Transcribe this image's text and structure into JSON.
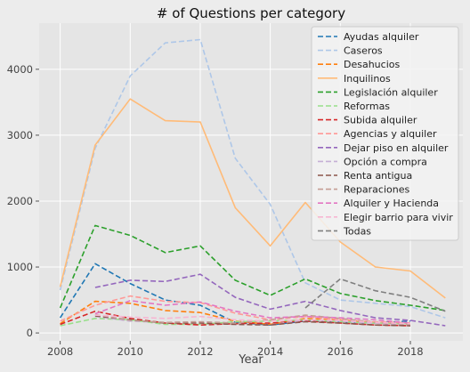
{
  "chart_data": {
    "type": "line",
    "title": "# of Questions per category",
    "xlabel": "Year",
    "ylabel": "",
    "xlim": [
      2007.4,
      2019.5
    ],
    "ylim": [
      -120,
      4700
    ],
    "xticks": [
      2008,
      2010,
      2012,
      2014,
      2016,
      2018
    ],
    "yticks": [
      0,
      1000,
      2000,
      3000,
      4000
    ],
    "x": [
      2008,
      2009,
      2010,
      2011,
      2012,
      2013,
      2014,
      2015,
      2016,
      2017,
      2018,
      2019
    ],
    "grid": true,
    "legend_position": "top-right",
    "series": [
      {
        "name": "Ayudas alquiler",
        "color": "#1f77b4",
        "dash": "dashed",
        "values": [
          230,
          1050,
          750,
          500,
          420,
          160,
          120,
          180,
          170,
          150,
          180,
          null
        ]
      },
      {
        "name": "Caseros",
        "color": "#aec7e8",
        "dash": "dashed",
        "values": [
          650,
          2800,
          3900,
          4400,
          4450,
          2650,
          1950,
          760,
          500,
          450,
          400,
          230
        ]
      },
      {
        "name": "Desahucios",
        "color": "#ff7f0e",
        "dash": "dashed",
        "values": [
          140,
          480,
          450,
          340,
          310,
          180,
          130,
          220,
          200,
          160,
          150,
          null
        ]
      },
      {
        "name": "Inquilinos",
        "color": "#ffbb78",
        "dash": "solid",
        "values": [
          700,
          2850,
          3550,
          3220,
          3200,
          1900,
          1320,
          1980,
          1380,
          1000,
          940,
          530
        ]
      },
      {
        "name": "Legislación alquiler",
        "color": "#2ca02c",
        "dash": "dashed",
        "values": [
          380,
          1630,
          1480,
          1220,
          1320,
          800,
          570,
          820,
          600,
          490,
          420,
          340
        ]
      },
      {
        "name": "Reformas",
        "color": "#98df8a",
        "dash": "dashed",
        "values": [
          110,
          220,
          200,
          130,
          130,
          170,
          180,
          200,
          170,
          150,
          140,
          null
        ]
      },
      {
        "name": "Subida alquiler",
        "color": "#d62728",
        "dash": "dashed",
        "values": [
          130,
          330,
          220,
          150,
          120,
          140,
          150,
          180,
          150,
          120,
          110,
          null
        ]
      },
      {
        "name": "Agencias y alquiler",
        "color": "#ff9896",
        "dash": "dashed",
        "values": [
          180,
          420,
          560,
          480,
          460,
          300,
          200,
          250,
          200,
          170,
          150,
          null
        ]
      },
      {
        "name": "Dejar piso en alquiler",
        "color": "#9467bd",
        "dash": "dashed",
        "values": [
          null,
          690,
          800,
          780,
          890,
          540,
          360,
          480,
          340,
          230,
          190,
          110
        ]
      },
      {
        "name": "Opción a compra",
        "color": "#c5b0d5",
        "dash": "dashed",
        "values": [
          null,
          250,
          180,
          160,
          150,
          130,
          120,
          200,
          180,
          150,
          120,
          null
        ]
      },
      {
        "name": "Renta antigua",
        "color": "#8c564b",
        "dash": "dashed",
        "values": [
          null,
          260,
          200,
          150,
          150,
          130,
          120,
          170,
          150,
          120,
          110,
          null
        ]
      },
      {
        "name": "Reparaciones",
        "color": "#c49c94",
        "dash": "dashed",
        "values": [
          null,
          280,
          190,
          160,
          170,
          150,
          200,
          270,
          220,
          160,
          130,
          null
        ]
      },
      {
        "name": "Alquiler y Hacienda",
        "color": "#e377c2",
        "dash": "dashed",
        "values": [
          null,
          290,
          490,
          420,
          470,
          330,
          230,
          250,
          230,
          200,
          150,
          null
        ]
      },
      {
        "name": "Elegir barrio para vivir",
        "color": "#f7b6d2",
        "dash": "dashed",
        "values": [
          null,
          270,
          240,
          220,
          250,
          200,
          180,
          200,
          190,
          160,
          140,
          null
        ]
      },
      {
        "name": "Todas",
        "color": "#7f7f7f",
        "dash": "dashed",
        "values": [
          null,
          null,
          null,
          null,
          null,
          null,
          null,
          380,
          820,
          640,
          540,
          330
        ]
      }
    ]
  }
}
